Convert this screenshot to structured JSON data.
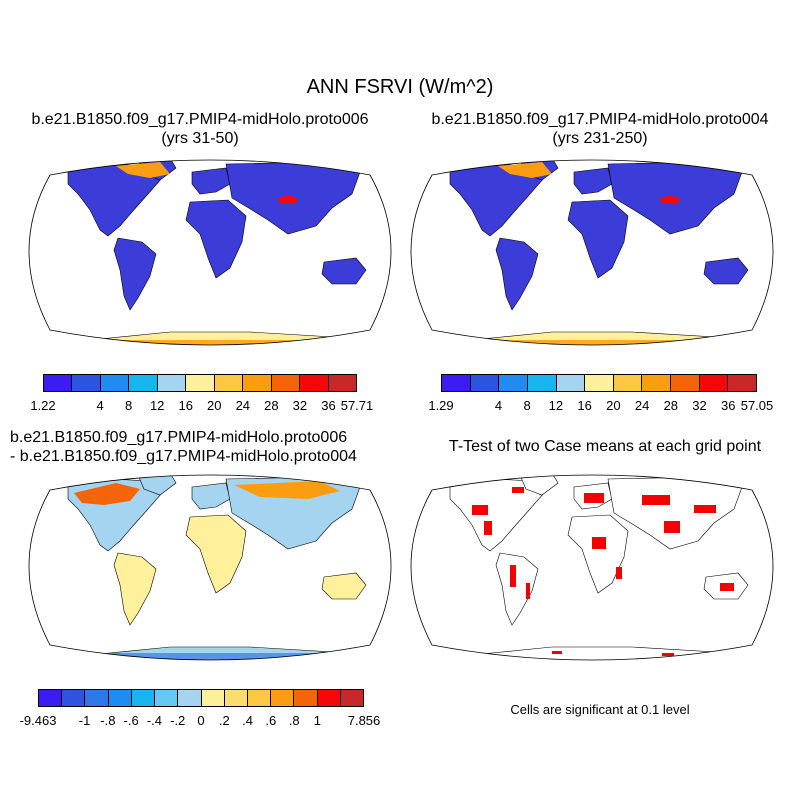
{
  "title": "ANN FSRVI (W/m^2)",
  "panels": {
    "case1": {
      "title_line1": "b.e21.B1850.f09_g17.PMIP4-midHolo.proto006",
      "title_line2": "(yrs 31-50)"
    },
    "case2": {
      "title_line1": "b.e21.B1850.f09_g17.PMIP4-midHolo.proto004",
      "title_line2": "(yrs 231-250)"
    },
    "diff": {
      "title_line1": "b.e21.B1850.f09_g17.PMIP4-midHolo.proto006",
      "title_line2": "- b.e21.B1850.f09_g17.PMIP4-midHolo.proto004"
    },
    "ttest": {
      "title": "T-Test of two Case means at each grid point",
      "note": "Cells are significant at 0.1 level"
    }
  },
  "colorbars": {
    "case1": {
      "labels": [
        "1.22",
        "4",
        "8",
        "12",
        "16",
        "20",
        "24",
        "28",
        "32",
        "36",
        "57.71"
      ],
      "colors": [
        "#3c1cf5",
        "#2c54e0",
        "#1e8cf0",
        "#18b4f0",
        "#a4d4f0",
        "#fff09c",
        "#fcc844",
        "#fc9c10",
        "#f46408",
        "#f40808",
        "#c82828"
      ]
    },
    "case2": {
      "labels": [
        "1.29",
        "4",
        "8",
        "12",
        "16",
        "20",
        "24",
        "28",
        "32",
        "36",
        "57.05"
      ],
      "colors": [
        "#3c1cf5",
        "#2c54e0",
        "#1e8cf0",
        "#18b4f0",
        "#a4d4f0",
        "#fff09c",
        "#fcc844",
        "#fc9c10",
        "#f46408",
        "#f40808",
        "#c82828"
      ]
    },
    "diff": {
      "labels": [
        "-9.463",
        "-1",
        "-.8",
        "-.6",
        "-.4",
        "-.2",
        "0",
        ".2",
        ".4",
        ".6",
        ".8",
        "1",
        "7.856"
      ],
      "colors": [
        "#3c1cf5",
        "#2c54e0",
        "#2c78e8",
        "#1e8cf0",
        "#18b4f0",
        "#64c8f0",
        "#a4d4f0",
        "#fff09c",
        "#fcdc70",
        "#fcc844",
        "#fc9c10",
        "#f46408",
        "#f40808",
        "#c82828"
      ]
    }
  },
  "map_fill": {
    "case1": {
      "land": "#3c3cd8",
      "high_lat": "#fc9c10",
      "antarctica": "#fff09c",
      "high_spot": "#f40808"
    },
    "case2": {
      "land": "#3c3cd8",
      "high_lat": "#fc9c10",
      "antarctica": "#fff09c",
      "high_spot": "#f40808"
    },
    "diff": {
      "land": "#a4d4f0",
      "warm": "#fff09c",
      "hot": "#f46408"
    },
    "ttest": {
      "significant": "#f40000"
    }
  }
}
